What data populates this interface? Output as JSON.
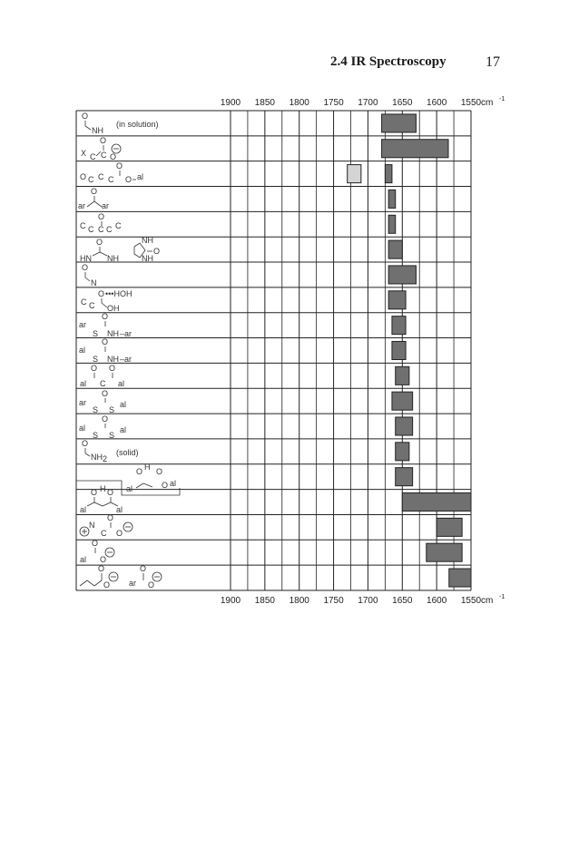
{
  "header": {
    "section": "2.4  IR Spectroscopy",
    "page": "17"
  },
  "chart_data": {
    "type": "bar",
    "xlabel": "cm-1",
    "xlim": [
      1900,
      1550
    ],
    "ticks": [
      1900,
      1850,
      1800,
      1750,
      1700,
      1650,
      1600,
      1550
    ],
    "tick_labels": [
      "1900",
      "1850",
      "1800",
      "1750",
      "1700",
      "1650",
      "1600",
      "1550"
    ],
    "unit_label": "cm",
    "unit_exponent": "-1",
    "grid": true,
    "rows": [
      {
        "label": "NH",
        "note": "(in solution)",
        "bars": [
          {
            "from": 1680,
            "to": 1630,
            "shade": "dark"
          }
        ]
      },
      {
        "label": "X C O",
        "note": "",
        "bars": [
          {
            "from": 1680,
            "to": 1583,
            "shade": "dark"
          }
        ]
      },
      {
        "label": "O C C O al",
        "note": "",
        "bars": [
          {
            "from": 1730,
            "to": 1710,
            "shade": "light"
          },
          {
            "from": 1675,
            "to": 1665,
            "shade": "dark"
          }
        ]
      },
      {
        "label": "ar ar",
        "note": "",
        "bars": [
          {
            "from": 1670,
            "to": 1660,
            "shade": "dark"
          }
        ]
      },
      {
        "label": "C C C C",
        "note": "",
        "bars": [
          {
            "from": 1670,
            "to": 1660,
            "shade": "dark"
          }
        ]
      },
      {
        "label": "HN NH",
        "note": "",
        "bars": [
          {
            "from": 1670,
            "to": 1650,
            "shade": "dark"
          }
        ]
      },
      {
        "label": "N",
        "note": "",
        "bars": [
          {
            "from": 1670,
            "to": 1630,
            "shade": "dark"
          }
        ]
      },
      {
        "label": "C C OH HOH",
        "note": "",
        "bars": [
          {
            "from": 1670,
            "to": 1645,
            "shade": "dark"
          }
        ]
      },
      {
        "label": "ar S NH-ar",
        "note": "",
        "bars": [
          {
            "from": 1665,
            "to": 1645,
            "shade": "dark"
          }
        ]
      },
      {
        "label": "al S NH-ar",
        "note": "",
        "bars": [
          {
            "from": 1665,
            "to": 1645,
            "shade": "dark"
          }
        ]
      },
      {
        "label": "al C al",
        "note": "",
        "bars": [
          {
            "from": 1660,
            "to": 1640,
            "shade": "dark"
          }
        ]
      },
      {
        "label": "ar S S al",
        "note": "",
        "bars": [
          {
            "from": 1665,
            "to": 1635,
            "shade": "dark"
          }
        ]
      },
      {
        "label": "al S S al",
        "note": "",
        "bars": [
          {
            "from": 1660,
            "to": 1635,
            "shade": "dark"
          }
        ]
      },
      {
        "label": "NH2",
        "note": "(solid)",
        "bars": [
          {
            "from": 1660,
            "to": 1640,
            "shade": "dark"
          }
        ]
      },
      {
        "label": "O H al O al",
        "note": "",
        "bars": [
          {
            "from": 1660,
            "to": 1635,
            "shade": "dark"
          }
        ]
      },
      {
        "label": "al O H O al",
        "note": "",
        "bars": [
          {
            "from": 1650,
            "to": 1550,
            "shade": "dark"
          }
        ]
      },
      {
        "label": "N C O",
        "note": "",
        "bars": [
          {
            "from": 1600,
            "to": 1563,
            "shade": "dark"
          }
        ]
      },
      {
        "label": "al O",
        "note": "",
        "bars": [
          {
            "from": 1615,
            "to": 1563,
            "shade": "dark"
          }
        ]
      },
      {
        "label": "O ar O",
        "note": "",
        "bars": [
          {
            "from": 1582,
            "to": 1550,
            "shade": "dark"
          }
        ]
      }
    ]
  },
  "colors": {
    "bar_dark": "#707070",
    "bar_light": "#d4d4d4",
    "grid": "#222222"
  }
}
